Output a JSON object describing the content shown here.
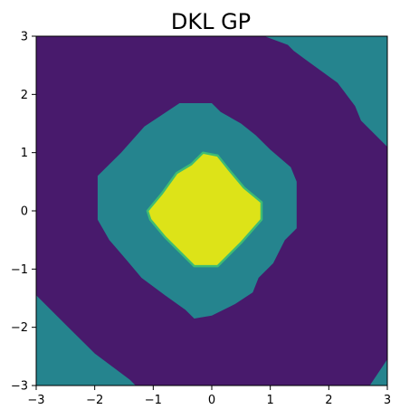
{
  "chart_data": {
    "type": "heatmap",
    "title": "DKL GP",
    "xlabel": "",
    "ylabel": "",
    "xlim": [
      -3,
      3
    ],
    "ylim": [
      -3,
      3
    ],
    "grid": false,
    "x_ticks": [
      -3,
      -2,
      -1,
      0,
      1,
      2,
      3
    ],
    "y_ticks": [
      -3,
      -2,
      -1,
      0,
      1,
      2,
      3
    ],
    "x_tick_labels": [
      "−3",
      "−2",
      "−1",
      "0",
      "1",
      "2",
      "3"
    ],
    "y_tick_labels": [
      "−3",
      "−2",
      "−1",
      "0",
      "1",
      "2",
      "3"
    ],
    "colors": {
      "level_low": "#481a6c",
      "level_mid": "#25848e",
      "level_high": "#dde318",
      "level_edge": "#3fbc73"
    },
    "regions": [
      {
        "level": "mid",
        "label": "top-right corner band",
        "polygon": [
          [
            0.9,
            3
          ],
          [
            3,
            3
          ],
          [
            3,
            1.1
          ],
          [
            2.55,
            1.55
          ],
          [
            2.45,
            1.8
          ],
          [
            2.15,
            2.2
          ],
          [
            1.6,
            2.6
          ],
          [
            1.4,
            2.75
          ],
          [
            1.3,
            2.85
          ]
        ]
      },
      {
        "level": "mid",
        "label": "bottom-left corner band",
        "polygon": [
          [
            -3,
            -1.45
          ],
          [
            -3,
            -3
          ],
          [
            -1.3,
            -3
          ],
          [
            -1.4,
            -2.9
          ],
          [
            -2.0,
            -2.45
          ],
          [
            -2.45,
            -2.0
          ]
        ]
      },
      {
        "level": "mid",
        "label": "bottom-right corner patch",
        "polygon": [
          [
            2.7,
            -3
          ],
          [
            3,
            -3
          ],
          [
            3,
            -2.55
          ],
          [
            2.9,
            -2.7
          ]
        ]
      },
      {
        "level": "mid",
        "label": "central ring",
        "polygon": [
          [
            -0.55,
            1.85
          ],
          [
            0.0,
            1.85
          ],
          [
            0.15,
            1.7
          ],
          [
            0.5,
            1.5
          ],
          [
            0.75,
            1.3
          ],
          [
            1.0,
            1.05
          ],
          [
            1.35,
            0.75
          ],
          [
            1.45,
            0.5
          ],
          [
            1.45,
            -0.3
          ],
          [
            1.25,
            -0.5
          ],
          [
            1.05,
            -0.9
          ],
          [
            0.8,
            -1.15
          ],
          [
            0.7,
            -1.4
          ],
          [
            0.4,
            -1.6
          ],
          [
            0.0,
            -1.8
          ],
          [
            -0.3,
            -1.85
          ],
          [
            -0.45,
            -1.7
          ],
          [
            -0.8,
            -1.45
          ],
          [
            -1.2,
            -1.15
          ],
          [
            -1.45,
            -0.85
          ],
          [
            -1.75,
            -0.5
          ],
          [
            -1.95,
            -0.15
          ],
          [
            -1.95,
            0.6
          ],
          [
            -1.55,
            1.0
          ],
          [
            -1.15,
            1.45
          ],
          [
            -0.85,
            1.65
          ]
        ]
      },
      {
        "level": "high",
        "label": "central core",
        "polygon": [
          [
            -0.15,
            1.0
          ],
          [
            0.1,
            0.95
          ],
          [
            0.3,
            0.7
          ],
          [
            0.55,
            0.4
          ],
          [
            0.85,
            0.15
          ],
          [
            0.85,
            -0.15
          ],
          [
            0.5,
            -0.55
          ],
          [
            0.3,
            -0.75
          ],
          [
            0.1,
            -0.95
          ],
          [
            -0.3,
            -0.95
          ],
          [
            -0.55,
            -0.7
          ],
          [
            -0.8,
            -0.45
          ],
          [
            -1.05,
            -0.15
          ],
          [
            -1.1,
            0.0
          ],
          [
            -0.85,
            0.3
          ],
          [
            -0.6,
            0.65
          ],
          [
            -0.35,
            0.8
          ]
        ]
      }
    ]
  }
}
